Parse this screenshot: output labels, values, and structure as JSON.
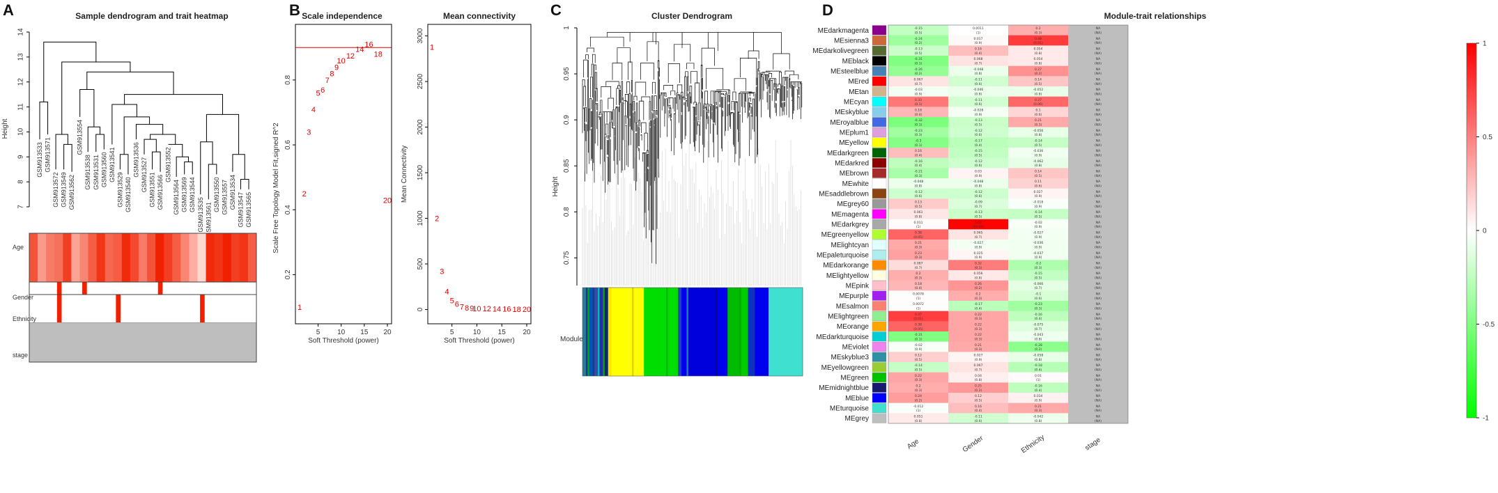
{
  "colors": {
    "red": "#f02000",
    "pink_light": "#fde3de",
    "grey": "#bebebe",
    "green": "#00e000",
    "line": "#000000",
    "curve_red": "#e00000"
  },
  "panel_labels": [
    "A",
    "B",
    "C",
    "D"
  ],
  "chart_data": [
    {
      "type": "dendrogram",
      "title": "Sample dendrogram and trait heatmap",
      "ylabel": "Height",
      "ylim": [
        7,
        14
      ],
      "yticks": [
        7,
        8,
        9,
        10,
        11,
        12,
        13,
        14
      ],
      "leaves": [
        "GSM913533",
        "GSM913571",
        "GSM913572",
        "GSM913549",
        "GSM913562",
        "GSM913554",
        "GSM913538",
        "GSM913531",
        "GSM913560",
        "GSM913541",
        "GSM913529",
        "GSM913540",
        "GSM913536",
        "GSM913527",
        "GSM913551",
        "GSM913566",
        "GSM913552",
        "GSM913564",
        "GSM913569",
        "GSM913544",
        "GSM913535",
        "GSM913561",
        "GSM913550",
        "GSM913557",
        "GSM913534",
        "GSM913547",
        "GSM913565"
      ],
      "leaf_heights": [
        9.7,
        9.9,
        8.5,
        8.5,
        8.4,
        10.6,
        9.2,
        9.2,
        9.3,
        9.5,
        8.5,
        8.3,
        9.7,
        9.1,
        8.5,
        8.4,
        9.5,
        8.2,
        8.3,
        8.3,
        7.5,
        7.3,
        8.3,
        8.2,
        8.4,
        7.7,
        7.7
      ],
      "merges": [
        [
          0,
          1,
          11.2
        ],
        [
          3,
          4,
          9.5
        ],
        [
          2,
          -2,
          9.9
        ],
        [
          7,
          8,
          9.9
        ],
        [
          6,
          -4,
          10.2
        ],
        [
          5,
          -5,
          11.7
        ],
        [
          10,
          11,
          9.1
        ],
        [
          14,
          15,
          9.2
        ],
        [
          18,
          19,
          8.8
        ],
        [
          17,
          -9,
          9.0
        ],
        [
          16,
          -10,
          9.5
        ],
        [
          13,
          -8,
          9.7
        ],
        [
          -12,
          -11,
          9.9
        ],
        [
          12,
          -13,
          10.3
        ],
        [
          -7,
          -14,
          10.6
        ],
        [
          9,
          -15,
          11.1
        ],
        [
          21,
          22,
          8.7
        ],
        [
          25,
          26,
          8.1
        ],
        [
          24,
          -18,
          9.1
        ],
        [
          20,
          -17,
          9.6
        ],
        [
          -19,
          -20,
          10.7
        ],
        [
          -16,
          -21,
          11.5
        ],
        [
          -6,
          -22,
          12.4
        ],
        [
          -3,
          -23,
          12.8
        ],
        [
          -1,
          -24,
          13.6
        ]
      ],
      "traits": [
        "Age",
        "Gender",
        "Ethnicity",
        "stage"
      ],
      "age_intensity": [
        0.75,
        0.4,
        0.55,
        0.6,
        0.85,
        0.35,
        0.5,
        0.7,
        0.9,
        0.65,
        0.7,
        0.95,
        0.8,
        0.55,
        0.75,
        1.0,
        0.85,
        0.7,
        0.5,
        0.3,
        0.1,
        0.95,
        0.9,
        1.0,
        0.85,
        0.9,
        0.7
      ],
      "gender_marks": [
        3,
        6,
        15
      ],
      "ethnicity_marks": [
        3,
        10,
        20
      ]
    },
    {
      "type": "scatter",
      "title": "Scale independence",
      "xlabel": "Soft Threshold (power)",
      "ylabel": "Scale Free Topology Model Fit,signed R^2",
      "xlim": [
        1,
        20
      ],
      "ylim": [
        0.07,
        0.95
      ],
      "xticks": [
        5,
        10,
        15,
        20
      ],
      "yticks": [
        0.2,
        0.4,
        0.6,
        0.8
      ],
      "hline": 0.9,
      "points": [
        [
          1,
          0.1
        ],
        [
          2,
          0.45
        ],
        [
          3,
          0.64
        ],
        [
          4,
          0.71
        ],
        [
          5,
          0.76
        ],
        [
          6,
          0.77
        ],
        [
          7,
          0.8
        ],
        [
          8,
          0.82
        ],
        [
          9,
          0.84
        ],
        [
          10,
          0.86
        ],
        [
          12,
          0.875
        ],
        [
          14,
          0.895
        ],
        [
          16,
          0.91
        ],
        [
          18,
          0.88
        ],
        [
          20,
          0.43
        ]
      ],
      "point_labels": [
        "1",
        "2",
        "3",
        "4",
        "5",
        "6",
        "7",
        "8",
        "9",
        "10",
        "12",
        "14",
        "16",
        "18",
        "20"
      ]
    },
    {
      "type": "scatter",
      "title": "Mean connectivity",
      "xlabel": "Soft Threshold (power)",
      "ylabel": "Mean Connectivity",
      "xlim": [
        1,
        20
      ],
      "ylim": [
        -80,
        3050
      ],
      "xticks": [
        5,
        10,
        15,
        20
      ],
      "yticks": [
        0,
        500,
        1000,
        1500,
        2000,
        2500,
        3000
      ],
      "points": [
        [
          1,
          2880
        ],
        [
          2,
          1000
        ],
        [
          3,
          420
        ],
        [
          4,
          200
        ],
        [
          5,
          100
        ],
        [
          6,
          60
        ],
        [
          7,
          30
        ],
        [
          8,
          20
        ],
        [
          9,
          15
        ],
        [
          10,
          12
        ],
        [
          12,
          10
        ],
        [
          14,
          8
        ],
        [
          16,
          6
        ],
        [
          18,
          5
        ],
        [
          20,
          4
        ]
      ],
      "point_labels": [
        "1",
        "2",
        "3",
        "4",
        "5",
        "6",
        "7",
        "8",
        "9",
        "10",
        "12",
        "14",
        "16",
        "18",
        "20"
      ]
    },
    {
      "type": "dendrogram",
      "title": "Cluster Dendrogram",
      "ylabel": "Height",
      "ylim": [
        0.72,
        1.0
      ],
      "yticks": [
        0.75,
        0.8,
        0.85,
        0.9,
        0.95,
        1.0
      ],
      "colorbar_label": "Module colors",
      "module_segments": [
        {
          "color": "#2a7a9a",
          "w": 2
        },
        {
          "color": "#1b3a8c",
          "w": 1
        },
        {
          "color": "#00aa00",
          "w": 1
        },
        {
          "color": "#0055bb",
          "w": 2
        },
        {
          "color": "#1b3a8c",
          "w": 1
        },
        {
          "color": "#3a4aa0",
          "w": 2
        },
        {
          "color": "#00bbbb",
          "w": 1
        },
        {
          "color": "#2a2aaa",
          "w": 2
        },
        {
          "color": "#00aa00",
          "w": 1
        },
        {
          "color": "#0a2a6a",
          "w": 2
        },
        {
          "color": "#ffe400",
          "w": 2
        },
        {
          "color": "#ffff00",
          "w": 12
        },
        {
          "color": "#e0d000",
          "w": 1
        },
        {
          "color": "#ffff00",
          "w": 6
        },
        {
          "color": "#00dd00",
          "w": 13
        },
        {
          "color": "#00bb00",
          "w": 1
        },
        {
          "color": "#00dd00",
          "w": 6
        },
        {
          "color": "#2040c0",
          "w": 2
        },
        {
          "color": "#0000ee",
          "w": 3
        },
        {
          "color": "#2080a0",
          "w": 1
        },
        {
          "color": "#0000dd",
          "w": 16
        },
        {
          "color": "#0a0a80",
          "w": 1
        },
        {
          "color": "#0000ee",
          "w": 6
        },
        {
          "color": "#00bb00",
          "w": 7
        },
        {
          "color": "#00aa00",
          "w": 1
        },
        {
          "color": "#00cc00",
          "w": 4
        },
        {
          "color": "#1030c0",
          "w": 4
        },
        {
          "color": "#0000ee",
          "w": 8
        },
        {
          "color": "#40e0d0",
          "w": 20
        }
      ]
    },
    {
      "type": "heatmap",
      "title": "Module-trait relationships",
      "traits": [
        "Age",
        "Gender",
        "Ethnicity",
        "stage"
      ],
      "modules": [
        "MEdarkmagenta",
        "MEsienna3",
        "MEdarkolivegreen",
        "MEblack",
        "MEsteelblue",
        "MEred",
        "MEtan",
        "MEcyan",
        "MEskyblue",
        "MEroyalblue",
        "MEplum1",
        "MEyellow",
        "MEdarkgreen",
        "MEdarkred",
        "MEbrown",
        "MEwhite",
        "MEsaddlebrown",
        "MEgrey60",
        "MEmagenta",
        "MEdarkgrey",
        "MEgreenyellow",
        "MElightcyan",
        "MEpaleturquoise",
        "MEdarkorange",
        "MElightyellow",
        "MEpink",
        "MEpurple",
        "MEsalmon",
        "MElightgreen",
        "MEorange",
        "MEdarkturquoise",
        "MEviolet",
        "MEskyblue3",
        "MEyellowgreen",
        "MEgreen",
        "MEmidnightblue",
        "MEblue",
        "MEturquoise",
        "MEgrey"
      ],
      "module_colors": [
        "#8b008b",
        "#cd6839",
        "#556b2f",
        "#000000",
        "#4682b4",
        "#ff0000",
        "#d2b48c",
        "#00ffff",
        "#87ceeb",
        "#4169e1",
        "#dda0dd",
        "#ffff00",
        "#006400",
        "#8b0000",
        "#a52a2a",
        "#ffffff",
        "#8b4513",
        "#999999",
        "#ff00ff",
        "#a9a9a9",
        "#adff2f",
        "#e0ffff",
        "#afeeee",
        "#ff8c00",
        "#ffffe0",
        "#ffc0cb",
        "#a020f0",
        "#fa8072",
        "#90ee90",
        "#ffa500",
        "#00ced1",
        "#ee82ee",
        "#2e8fa5",
        "#9acd32",
        "#00c000",
        "#191970",
        "#0000ff",
        "#40e0d0",
        "#bebebe"
      ],
      "correlations": [
        [
          -0.15,
          0.0011,
          0.2
        ],
        [
          -0.24,
          0.017,
          0.48
        ],
        [
          -0.13,
          0.16,
          0.054
        ],
        [
          -0.31,
          0.068,
          0.054
        ],
        [
          -0.26,
          -0.048,
          0.27
        ],
        [
          0.067,
          -0.11,
          0.14
        ],
        [
          -0.03,
          -0.046,
          -0.052
        ],
        [
          0.33,
          -0.11,
          0.37
        ],
        [
          0.18,
          -0.028,
          0.1
        ],
        [
          -0.32,
          -0.13,
          0.21
        ],
        [
          -0.23,
          -0.12,
          -0.056
        ],
        [
          -0.3,
          -0.17,
          -0.14
        ],
        [
          0.16,
          -0.15,
          -0.036
        ],
        [
          -0.16,
          -0.12,
          -0.062
        ],
        [
          -0.21,
          0.03,
          0.14
        ],
        [
          -0.048,
          -0.048,
          0.11
        ],
        [
          -0.12,
          -0.12,
          0.027
        ],
        [
          0.13,
          -0.09,
          -0.018
        ],
        [
          0.061,
          -0.13,
          -0.14
        ],
        [
          0.011,
          0.62,
          -0.02
        ],
        [
          0.38,
          0.065,
          -0.027
        ],
        [
          0.21,
          -0.027,
          -0.036
        ],
        [
          0.23,
          0.025,
          -0.037
        ],
        [
          0.087,
          0.32,
          -0.2
        ],
        [
          0.2,
          0.056,
          -0.15
        ],
        [
          0.18,
          0.26,
          -0.066
        ],
        [
          0.0078,
          0.2,
          -0.1
        ],
        [
          0.0072,
          -0.17,
          -0.23
        ],
        [
          0.47,
          0.22,
          -0.16
        ],
        [
          0.38,
          0.22,
          -0.075
        ],
        [
          -0.31,
          0.22,
          -0.043
        ],
        [
          -0.02,
          0.21,
          -0.28
        ],
        [
          0.12,
          0.027,
          -0.058
        ],
        [
          -0.14,
          0.067,
          -0.18
        ],
        [
          0.22,
          0.04,
          0.01
        ],
        [
          0.2,
          0.25,
          -0.16
        ],
        [
          0.24,
          0.12,
          0.034
        ],
        [
          -0.012,
          0.16,
          0.21
        ],
        [
          0.051,
          -0.11,
          -0.042
        ]
      ],
      "pvalues": [
        [
          "0.5",
          "1",
          "0.3"
        ],
        [
          "0.2",
          "0.9",
          "0.01"
        ],
        [
          "0.5",
          "0.4",
          "0.8"
        ],
        [
          "0.1",
          "0.7",
          "0.8"
        ],
        [
          "0.2",
          "0.8",
          "0.2"
        ],
        [
          "0.7",
          "0.6",
          "0.5"
        ],
        [
          "0.9",
          "0.8",
          "0.8"
        ],
        [
          "0.1",
          "0.6",
          "0.06"
        ],
        [
          "0.4",
          "0.9",
          "0.6"
        ],
        [
          "0.1",
          "0.5",
          "0.3"
        ],
        [
          "0.3",
          "0.6",
          "0.8"
        ],
        [
          "0.1",
          "0.4",
          "0.5"
        ],
        [
          "0.4",
          "0.5",
          "0.9"
        ],
        [
          "0.4",
          "0.6",
          "0.8"
        ],
        [
          "0.3",
          "0.9",
          "0.5"
        ],
        [
          "0.8",
          "0.8",
          "0.6"
        ],
        [
          "0.6",
          "0.6",
          "0.9"
        ],
        [
          "0.5",
          "0.7",
          "0.9"
        ],
        [
          "0.8",
          "0.5",
          "0.5"
        ],
        [
          "1",
          "5e-04",
          "0.9"
        ],
        [
          "0.05",
          "0.7",
          "0.9"
        ],
        [
          "0.3",
          "0.9",
          "0.9"
        ],
        [
          "0.3",
          "0.9",
          "0.9"
        ],
        [
          "0.7",
          "0.1",
          "0.3"
        ],
        [
          "0.3",
          "0.8",
          "0.5"
        ],
        [
          "0.4",
          "0.2",
          "0.7"
        ],
        [
          "1",
          "0.3",
          "0.6"
        ],
        [
          "1",
          "0.4",
          "0.3"
        ],
        [
          "0.01",
          "0.3",
          "0.4"
        ],
        [
          "0.05",
          "0.3",
          "0.7"
        ],
        [
          "0.1",
          "0.3",
          "0.8"
        ],
        [
          "0.9",
          "0.3",
          "0.2"
        ],
        [
          "0.5",
          "0.9",
          "0.8"
        ],
        [
          "0.5",
          "0.7",
          "0.4"
        ],
        [
          "0.3",
          "0.8",
          "1"
        ],
        [
          "0.3",
          "0.2",
          "0.4"
        ],
        [
          "0.2",
          "0.5",
          "0.9"
        ],
        [
          "1",
          "0.4",
          "0.3"
        ],
        [
          "0.8",
          "0.6",
          "0.8"
        ]
      ],
      "stage_cell": "NA\n(NA)",
      "legend_ticks": [
        1,
        0.5,
        0,
        -0.5,
        -1
      ]
    }
  ]
}
